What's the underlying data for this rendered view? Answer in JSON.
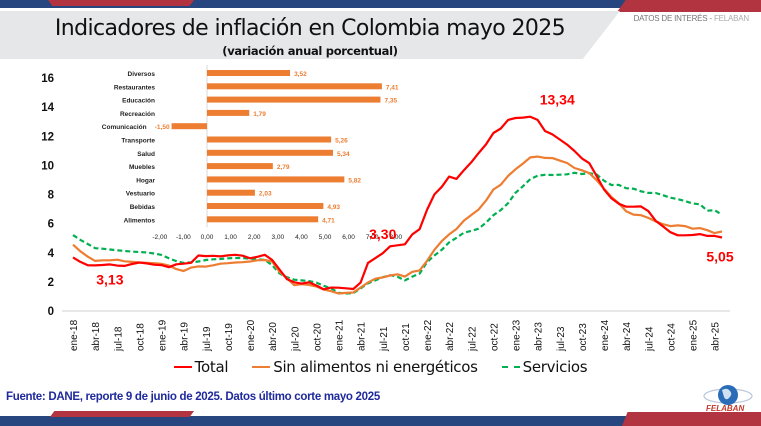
{
  "header": {
    "title": "Indicadores de inflación en Colombia mayo 2025",
    "subtitle": "(variación anual porcentual)",
    "tag_prefix": "DATOS DE INTERÉS - ",
    "tag_brand": "FELABAN"
  },
  "colors": {
    "total": "#ff0000",
    "core": "#ed7d31",
    "services": "#00b050",
    "bars": "#ed7d31",
    "navy": "#27457e",
    "red_band": "#b23440",
    "source_text": "#1f2a9c"
  },
  "legend": [
    {
      "label": "Total",
      "style": "solid",
      "color": "#ff0000"
    },
    {
      "label": "Sin alimentos ni energéticos",
      "style": "solid",
      "color": "#ed7d31"
    },
    {
      "label": "Servicios",
      "style": "dashed",
      "color": "#00b050"
    }
  ],
  "footer": {
    "source": "Fuente: DANE, reporte 9 de junio de 2025. Datos último corte mayo 2025",
    "logo_text": "FELABAN"
  },
  "chart_data": [
    {
      "type": "line",
      "title": "Indicadores de inflación en Colombia mayo 2025",
      "subtitle": "(variación anual porcentual)",
      "xlabel": "",
      "ylabel": "",
      "ylim": [
        0,
        16
      ],
      "yticks": [
        0,
        2,
        4,
        6,
        8,
        10,
        12,
        14,
        16
      ],
      "grid": false,
      "legend_position": "bottom",
      "x_start": "ene-18",
      "x_end": "may-25",
      "x_tick_labels": [
        "ene-18",
        "abr-18",
        "jul-18",
        "oct-18",
        "ene-19",
        "abr-19",
        "jul-19",
        "oct-19",
        "ene-20",
        "abr-20",
        "jul-20",
        "oct-20",
        "ene-21",
        "abr-21",
        "jul-21",
        "oct-21",
        "ene-22",
        "abr-22",
        "jul-22",
        "oct-22",
        "ene-23",
        "abr-23",
        "jul-23",
        "oct-23",
        "ene-24",
        "abr-24",
        "jul-24",
        "oct-24",
        "ene-25",
        "abr-25"
      ],
      "series": [
        {
          "name": "Total",
          "style": "solid",
          "values": [
            3.68,
            3.37,
            3.14,
            3.13,
            3.16,
            3.2,
            3.12,
            3.1,
            3.23,
            3.33,
            3.27,
            3.18,
            3.15,
            3.01,
            3.21,
            3.25,
            3.31,
            3.81,
            3.77,
            3.79,
            3.75,
            3.82,
            3.86,
            3.8,
            3.62,
            3.72,
            3.86,
            3.51,
            2.85,
            2.19,
            1.97,
            1.88,
            1.97,
            1.75,
            1.49,
            1.61,
            1.6,
            1.56,
            1.51,
            1.95,
            3.3,
            3.63,
            3.97,
            4.44,
            4.51,
            4.58,
            5.26,
            5.62,
            6.94,
            8.01,
            8.53,
            9.23,
            9.07,
            9.67,
            10.21,
            10.84,
            11.44,
            12.22,
            12.53,
            13.12,
            13.25,
            13.28,
            13.34,
            13.12,
            12.36,
            12.13,
            11.78,
            11.43,
            10.99,
            10.48,
            10.15,
            9.28,
            8.35,
            7.74,
            7.36,
            7.16,
            7.16,
            7.18,
            6.86,
            6.2,
            5.81,
            5.41,
            5.2,
            5.2,
            5.22,
            5.28,
            5.16,
            5.16,
            5.05
          ],
          "annotations": [
            {
              "x": "jun-18",
              "label": "3,13"
            },
            {
              "x": "jul-21",
              "label": "3,30"
            },
            {
              "x": "mar-23",
              "label": "13,34"
            },
            {
              "x": "may-25",
              "label": "5,05"
            }
          ]
        },
        {
          "name": "Sin alimentos ni energéticos",
          "style": "solid",
          "values": [
            4.55,
            4.1,
            3.73,
            3.44,
            3.48,
            3.48,
            3.52,
            3.41,
            3.37,
            3.33,
            3.3,
            3.28,
            3.24,
            3.12,
            2.88,
            2.75,
            2.98,
            3.06,
            3.05,
            3.14,
            3.25,
            3.28,
            3.33,
            3.35,
            3.4,
            3.48,
            3.5,
            3.4,
            2.7,
            2.25,
            1.77,
            1.85,
            1.79,
            1.68,
            1.47,
            1.36,
            1.2,
            1.24,
            1.27,
            1.61,
            1.96,
            2.22,
            2.31,
            2.44,
            2.52,
            2.36,
            2.69,
            2.79,
            3.44,
            4.2,
            4.8,
            5.26,
            5.63,
            6.21,
            6.59,
            6.97,
            7.58,
            8.34,
            8.67,
            9.28,
            9.73,
            10.12,
            10.55,
            10.6,
            10.51,
            10.5,
            10.33,
            10.16,
            9.82,
            9.66,
            9.47,
            8.98,
            8.4,
            7.83,
            7.4,
            6.85,
            6.62,
            6.58,
            6.39,
            6.15,
            5.96,
            5.83,
            5.88,
            5.83,
            5.65,
            5.69,
            5.55,
            5.35,
            5.46
          ],
          "annotations": []
        },
        {
          "name": "Servicios",
          "style": "dashed",
          "values": [
            5.21,
            4.88,
            4.6,
            4.31,
            4.28,
            4.22,
            4.17,
            4.12,
            4.08,
            4.05,
            4.02,
            3.95,
            3.85,
            3.62,
            3.43,
            3.3,
            3.34,
            3.4,
            3.5,
            3.55,
            3.57,
            3.62,
            3.64,
            3.63,
            3.6,
            3.55,
            3.51,
            3.15,
            2.58,
            2.32,
            2.15,
            2.1,
            2.05,
            1.95,
            1.73,
            1.55,
            1.25,
            1.2,
            1.22,
            1.55,
            1.9,
            2.1,
            2.32,
            2.46,
            2.35,
            2.1,
            2.36,
            2.57,
            3.35,
            3.81,
            4.2,
            4.71,
            5.03,
            5.38,
            5.5,
            5.65,
            6.07,
            6.58,
            6.93,
            7.4,
            8.12,
            8.56,
            9.06,
            9.29,
            9.35,
            9.34,
            9.36,
            9.39,
            9.49,
            9.41,
            9.46,
            9.37,
            8.95,
            8.65,
            8.66,
            8.43,
            8.4,
            8.22,
            8.11,
            8.1,
            7.95,
            7.78,
            7.68,
            7.55,
            7.39,
            7.33,
            6.89,
            6.92,
            6.61
          ],
          "annotations": []
        }
      ]
    },
    {
      "type": "bar",
      "orientation": "horizontal",
      "title": "",
      "categories": [
        "Diversos",
        "Restaurantes",
        "Educación",
        "Recreación",
        "Comunicación",
        "Transporte",
        "Salud",
        "Muebles",
        "Hogar",
        "Vestuario",
        "Bebidas",
        "Alimentos"
      ],
      "values": [
        3.52,
        7.41,
        7.35,
        1.79,
        -1.5,
        5.26,
        5.34,
        2.79,
        5.82,
        2.03,
        4.93,
        4.71
      ],
      "value_labels": [
        "3,52",
        "7,41",
        "7,35",
        "1,79",
        "-1,50",
        "5,26",
        "5,34",
        "2,79",
        "5,82",
        "2,03",
        "4,93",
        "4,71"
      ],
      "xlim": [
        -2,
        8
      ],
      "xticks": [
        -2,
        -1,
        0,
        1,
        2,
        3,
        4,
        5,
        6,
        7,
        8
      ],
      "x_tick_labels": [
        "-2,00",
        "-1,00",
        "0,00",
        "1,00",
        "2,00",
        "3,00",
        "4,00",
        "5,00",
        "6,00",
        "7,00",
        "8,00"
      ],
      "grid": false
    }
  ]
}
